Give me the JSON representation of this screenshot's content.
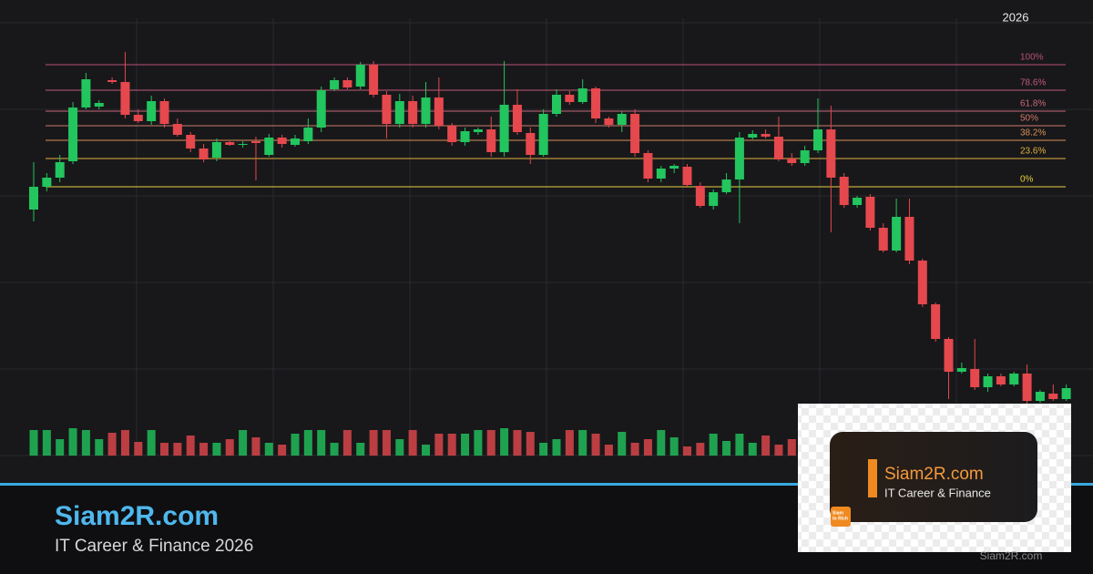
{
  "chart_data": {
    "type": "candlestick",
    "year_label": "2026",
    "open": [
      270,
      295,
      305,
      323,
      382,
      383,
      412,
      410,
      374,
      367,
      389,
      364,
      352,
      337,
      327,
      344,
      341,
      345,
      330,
      349,
      341,
      345,
      360,
      402,
      412,
      405,
      429,
      396,
      364,
      389,
      364,
      393,
      362,
      344,
      355,
      358,
      333,
      385,
      354,
      330,
      375,
      396,
      388,
      403,
      370,
      363,
      375,
      332,
      304,
      315,
      317,
      296,
      274,
      289,
      303,
      349,
      353,
      350,
      326,
      321,
      335,
      358,
      306,
      275,
      284,
      250,
      225,
      262,
      214,
      166,
      128,
      92,
      95,
      75,
      87,
      78,
      90,
      60,
      68,
      62
    ],
    "close": [
      295,
      305,
      322,
      382,
      413,
      387,
      410,
      374,
      367,
      389,
      364,
      352,
      337,
      325,
      344,
      341,
      342,
      343,
      349,
      342,
      348,
      360,
      401,
      412,
      404,
      429,
      396,
      364,
      389,
      364,
      393,
      362,
      344,
      356,
      358,
      333,
      385,
      355,
      330,
      375,
      396,
      388,
      403,
      370,
      363,
      375,
      332,
      304,
      315,
      318,
      297,
      274,
      289,
      303,
      349,
      353,
      350,
      325,
      321,
      335,
      358,
      305,
      275,
      283,
      250,
      225,
      262,
      214,
      166,
      128,
      92,
      96,
      75,
      87,
      78,
      90,
      60,
      70,
      62,
      74
    ],
    "high": [
      322,
      310,
      330,
      388,
      420,
      390,
      415,
      443,
      380,
      395,
      392,
      370,
      355,
      342,
      348,
      345,
      345,
      350,
      353,
      352,
      352,
      370,
      405,
      415,
      415,
      432,
      433,
      400,
      397,
      395,
      410,
      415,
      365,
      360,
      360,
      372,
      433,
      402,
      360,
      380,
      402,
      400,
      413,
      405,
      372,
      378,
      380,
      335,
      318,
      320,
      320,
      300,
      292,
      310,
      355,
      357,
      358,
      372,
      332,
      340,
      392,
      384,
      310,
      285,
      287,
      255,
      282,
      282,
      216,
      168,
      130,
      102,
      128,
      90,
      90,
      92,
      100,
      72,
      78,
      78
    ],
    "low": [
      257,
      290,
      300,
      320,
      380,
      380,
      408,
      370,
      365,
      363,
      360,
      350,
      333,
      322,
      323,
      340,
      338,
      302,
      328,
      338,
      339,
      342,
      355,
      400,
      402,
      402,
      393,
      348,
      360,
      360,
      360,
      358,
      340,
      340,
      352,
      328,
      328,
      352,
      320,
      328,
      372,
      385,
      386,
      365,
      360,
      355,
      328,
      300,
      300,
      310,
      294,
      272,
      270,
      287,
      255,
      347,
      348,
      323,
      318,
      318,
      332,
      245,
      272,
      272,
      247,
      223,
      223,
      210,
      163,
      125,
      62,
      90,
      72,
      70,
      76,
      76,
      55,
      58,
      60,
      60
    ],
    "volume": [
      28,
      28,
      18,
      30,
      28,
      18,
      25,
      28,
      15,
      28,
      14,
      14,
      22,
      14,
      14,
      18,
      28,
      20,
      14,
      12,
      24,
      28,
      28,
      14,
      28,
      14,
      28,
      28,
      18,
      28,
      12,
      24,
      24,
      24,
      28,
      28,
      30,
      28,
      26,
      14,
      18,
      28,
      28,
      24,
      12,
      26,
      14,
      18,
      28,
      20,
      10,
      14,
      24,
      16,
      24,
      14,
      22,
      12,
      18,
      28,
      24,
      18,
      18,
      18,
      20,
      18,
      18,
      14,
      20,
      22,
      16,
      18,
      24,
      20,
      22,
      18,
      26,
      20,
      22,
      24
    ],
    "ylim": [
      0,
      480
    ],
    "y2lim": [
      0,
      100
    ],
    "up_color": "#22c55e",
    "down_color": "#e5484d",
    "fib_levels": [
      {
        "value": 429,
        "label": "100%",
        "color": "#b8507a"
      },
      {
        "value": 401,
        "label": "78.6%",
        "color": "#c05a78"
      },
      {
        "value": 378,
        "label": "61.8%",
        "color": "#c8687a"
      },
      {
        "value": 362,
        "label": "50%",
        "color": "#d0786a"
      },
      {
        "value": 346,
        "label": "38.2%",
        "color": "#d8905a"
      },
      {
        "value": 326,
        "label": "23.6%",
        "color": "#e0b040"
      },
      {
        "value": 295,
        "label": "0%",
        "color": "#e8d040"
      }
    ]
  },
  "branding": {
    "site": "Siam2R.com",
    "tagline": "IT Career & Finance 2026"
  },
  "card": {
    "site": "Siam2R.com",
    "tagline": "IT Career & Finance",
    "logo_lines": [
      "Siam",
      "to Rich"
    ]
  },
  "footer_site": "Siam2R.com"
}
